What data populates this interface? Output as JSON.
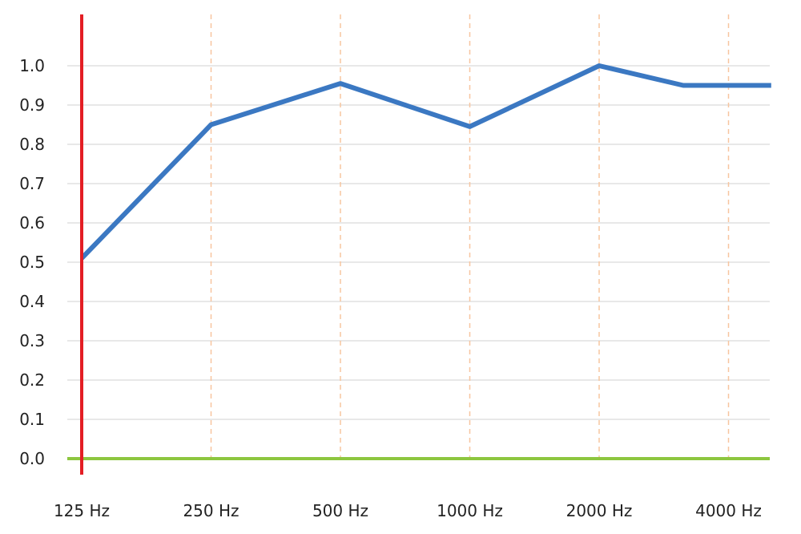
{
  "chart_data": {
    "type": "line",
    "categories": [
      "125 Hz",
      "250 Hz",
      "500 Hz",
      "1000 Hz",
      "2000 Hz",
      "4000 Hz"
    ],
    "x": [
      0,
      1,
      2,
      3,
      4,
      4.65,
      5,
      5.33
    ],
    "series": [
      {
        "values": [
          0.51,
          0.85,
          0.955,
          0.845,
          1.0,
          0.95,
          0.95,
          0.95
        ]
      }
    ],
    "ylim": [
      0,
      1.0
    ],
    "yticks": [
      "0.0",
      "0.1",
      "0.2",
      "0.3",
      "0.4",
      "0.5",
      "0.6",
      "0.7",
      "0.8",
      "0.9",
      "1.0"
    ],
    "title": "",
    "xlabel": "",
    "ylabel": "",
    "grid": true,
    "colors": {
      "series": "#3b78c2",
      "y_axis": "#e31e24",
      "x_axis": "#8dc63f",
      "h_grid": "#e0e0e0",
      "v_grid": "#f7c59f"
    }
  }
}
